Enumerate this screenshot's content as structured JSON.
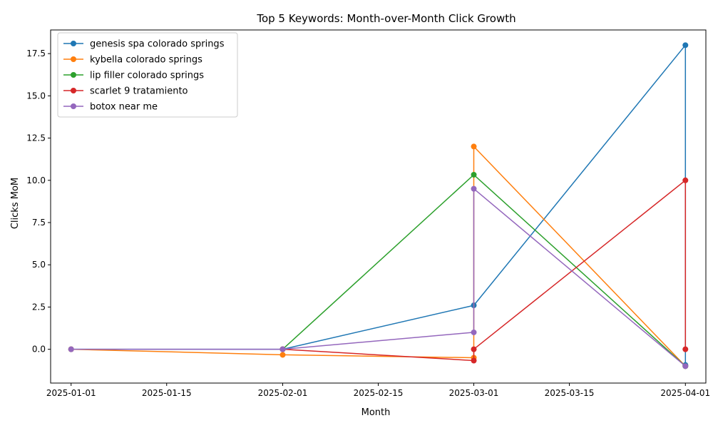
{
  "chart_data": {
    "type": "line",
    "title": "Top 5 Keywords: Month-over-Month Click Growth",
    "xlabel": "Month",
    "ylabel": "Clicks MoM",
    "x_type": "date",
    "xlim": [
      "2024-12-29",
      "2025-04-04"
    ],
    "x_ticks": [
      "2025-01-01",
      "2025-01-15",
      "2025-02-01",
      "2025-02-15",
      "2025-03-01",
      "2025-03-15",
      "2025-04-01"
    ],
    "ylim": [
      -2.0,
      18.9
    ],
    "y_ticks": [
      0.0,
      2.5,
      5.0,
      7.5,
      10.0,
      12.5,
      15.0,
      17.5
    ],
    "y_tick_labels": [
      "0.0",
      "2.5",
      "5.0",
      "7.5",
      "10.0",
      "12.5",
      "15.0",
      "17.5"
    ],
    "grid": false,
    "legend_position": "top-left",
    "series": [
      {
        "name": "genesis spa colorado springs",
        "color": "#1f77b4",
        "points": [
          [
            "2025-01-01",
            0.0
          ],
          [
            "2025-02-01",
            0.0
          ],
          [
            "2025-03-01",
            2.6
          ],
          [
            "2025-04-01",
            18.0
          ],
          [
            "2025-04-01",
            -0.93
          ]
        ]
      },
      {
        "name": "kybella colorado springs",
        "color": "#ff7f0e",
        "points": [
          [
            "2025-01-01",
            0.0
          ],
          [
            "2025-02-01",
            -0.33
          ],
          [
            "2025-03-01",
            -0.5
          ],
          [
            "2025-03-01",
            12.0
          ],
          [
            "2025-04-01",
            -1.0
          ]
        ]
      },
      {
        "name": "lip filler colorado springs",
        "color": "#2ca02c",
        "points": [
          [
            "2025-02-01",
            0.0
          ],
          [
            "2025-03-01",
            10.33
          ],
          [
            "2025-04-01",
            -1.0
          ]
        ]
      },
      {
        "name": "scarlet 9 tratamiento",
        "color": "#d62728",
        "points": [
          [
            "2025-02-01",
            0.0
          ],
          [
            "2025-03-01",
            -0.67
          ],
          [
            "2025-03-01",
            0.0
          ],
          [
            "2025-04-01",
            10.0
          ],
          [
            "2025-04-01",
            0.0
          ]
        ]
      },
      {
        "name": "botox near me",
        "color": "#9467bd",
        "points": [
          [
            "2025-01-01",
            0.0
          ],
          [
            "2025-02-01",
            0.0
          ],
          [
            "2025-03-01",
            1.0
          ],
          [
            "2025-03-01",
            9.5
          ],
          [
            "2025-04-01",
            -1.0
          ]
        ]
      }
    ]
  }
}
